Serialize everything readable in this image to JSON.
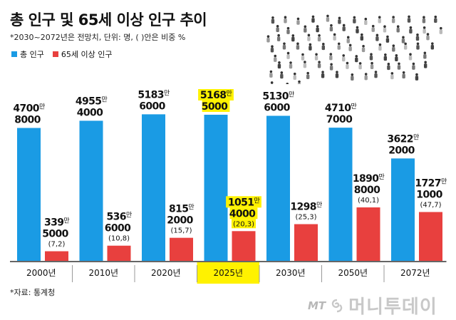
{
  "header": {
    "title": "총 인구 및 65세 이상 인구 추이",
    "subtitle": "*2030~2072년은 전망치, 단위: 명, ( )안은 비중 %"
  },
  "source": "*자료: 통계청",
  "brand": {
    "mt": "MT",
    "name": "머니투데이"
  },
  "colors": {
    "total": "#1a9be4",
    "elderly": "#e8403e",
    "highlight": "#fff200",
    "axis": "#333333"
  },
  "chart_data": {
    "type": "bar",
    "categories": [
      "2000년",
      "2010년",
      "2020년",
      "2025년",
      "2030년",
      "2050년",
      "2072년"
    ],
    "highlight_category": "2025년",
    "series": [
      {
        "name": "총 인구",
        "values": [
          47008000,
          49554000,
          51836000,
          51685000,
          51306000,
          47107000,
          36222000
        ]
      },
      {
        "name": "65세 이상 인구",
        "values": [
          3395000,
          5366000,
          8152000,
          10514000,
          12981000,
          18908000,
          17271000
        ]
      }
    ],
    "labels_total": [
      {
        "l1": "4700",
        "unit": "만",
        "l2": "8000"
      },
      {
        "l1": "4955",
        "unit": "만",
        "l2": "4000"
      },
      {
        "l1": "5183",
        "unit": "만",
        "l2": "6000"
      },
      {
        "l1": "5168",
        "unit": "만",
        "l2": "5000"
      },
      {
        "l1": "5130",
        "unit": "만",
        "l2": "6000"
      },
      {
        "l1": "4710",
        "unit": "만",
        "l2": "7000"
      },
      {
        "l1": "3622",
        "unit": "만",
        "l2": "2000"
      }
    ],
    "labels_elderly": [
      {
        "l1": "339",
        "unit": "만",
        "l2": "5000",
        "share": "(7,2)"
      },
      {
        "l1": "536",
        "unit": "만",
        "l2": "6000",
        "share": "(10,8)"
      },
      {
        "l1": "815",
        "unit": "만",
        "l2": "2000",
        "share": "(15,7)"
      },
      {
        "l1": "1051",
        "unit": "만",
        "l2": "4000",
        "share": "(20,3)"
      },
      {
        "l1": "1298",
        "unit": "만",
        "l2": "",
        "share": "(25,3)"
      },
      {
        "l1": "1890",
        "unit": "만",
        "l2": "8000",
        "share": "(40,1)"
      },
      {
        "l1": "1727",
        "unit": "만",
        "l2": "1000",
        "share": "(47,7)"
      }
    ],
    "legend": [
      {
        "label": "총 인구",
        "color": "#1a9be4"
      },
      {
        "label": "65세 이상 인구",
        "color": "#e8403e"
      }
    ],
    "ylim": [
      0,
      60000000
    ],
    "grid": false,
    "legend_position": "top-left"
  }
}
